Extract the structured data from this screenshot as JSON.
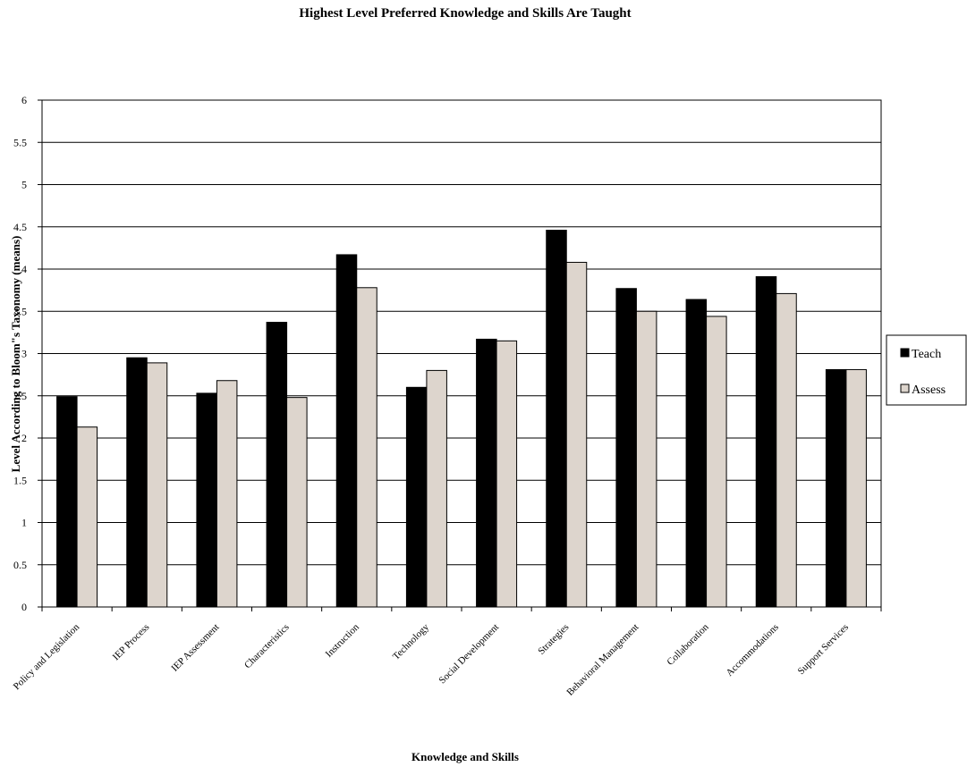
{
  "chart_data": {
    "type": "bar",
    "title": "Highest Level Preferred Knowledge and Skills Are Taught",
    "xlabel": "Knowledge and Skills",
    "ylabel": "Level According to Bloom\"s Taxonomy (means)",
    "ylim": [
      0,
      6
    ],
    "yticks": [
      "0",
      "0.5",
      "1",
      "1.5",
      "2",
      "2.5",
      "3",
      "3.5",
      "4",
      "4.5",
      "5",
      "5.5",
      "6"
    ],
    "grid": true,
    "legend_position": "right",
    "categories": [
      "Policy and Legislation",
      "IEP Process",
      "IEP Assessment",
      "Characteristics",
      "Instruction",
      "Technology",
      "Social Development",
      "Strategies",
      "Behavioral Management",
      "Collaboration",
      "Accommodations",
      "Support Services"
    ],
    "series": [
      {
        "name": "Teach",
        "color": "#000000",
        "values": [
          2.49,
          2.95,
          2.53,
          3.37,
          4.17,
          2.6,
          3.17,
          4.46,
          3.77,
          3.64,
          3.91,
          2.81
        ]
      },
      {
        "name": "Assess",
        "color": "#ddd5cd",
        "values": [
          2.13,
          2.89,
          2.68,
          2.48,
          3.78,
          2.8,
          3.15,
          4.08,
          3.5,
          3.44,
          3.71,
          2.81
        ]
      }
    ]
  }
}
